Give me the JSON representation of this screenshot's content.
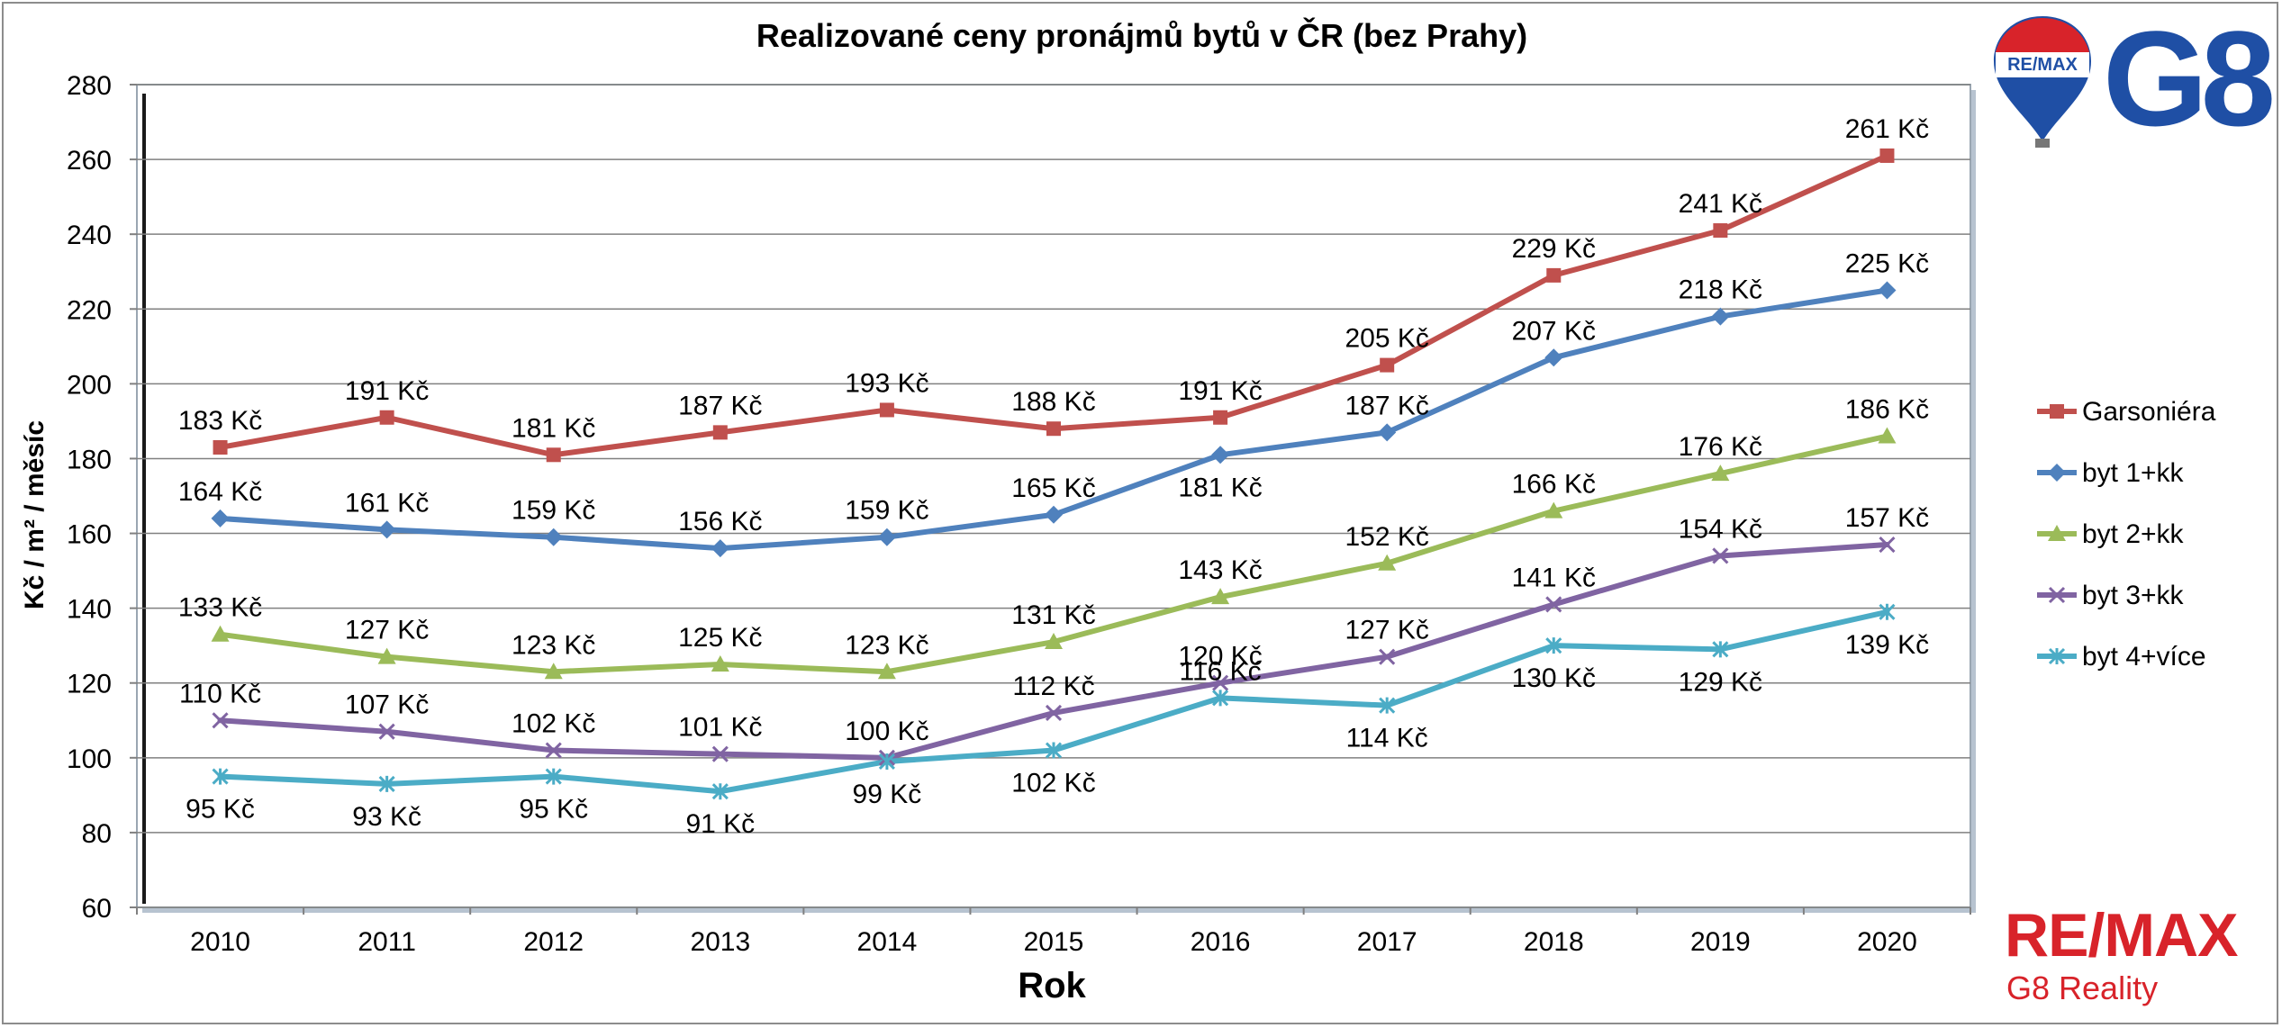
{
  "chart_data": {
    "type": "line",
    "title": "Realizované ceny pronájmů bytů v ČR (bez Prahy)",
    "xlabel": "Rok",
    "ylabel": "Kč / m² / měsíc",
    "categories": [
      "2010",
      "2011",
      "2012",
      "2013",
      "2014",
      "2015",
      "2016",
      "2017",
      "2018",
      "2019",
      "2020"
    ],
    "ylim": [
      60,
      280
    ],
    "yticks": [
      60,
      80,
      100,
      120,
      140,
      160,
      180,
      200,
      220,
      240,
      260,
      280
    ],
    "grid": true,
    "legend_position": "right",
    "value_suffix": " Kč",
    "series": [
      {
        "name": "Garsoniéra",
        "color": "#c0504d",
        "marker": "square",
        "values": [
          183,
          191,
          181,
          187,
          193,
          188,
          191,
          205,
          229,
          241,
          261
        ]
      },
      {
        "name": "byt 1+kk",
        "color": "#4f81bd",
        "marker": "diamond",
        "values": [
          164,
          161,
          159,
          156,
          159,
          165,
          181,
          187,
          207,
          218,
          225
        ]
      },
      {
        "name": "byt 2+kk",
        "color": "#9bbb59",
        "marker": "triangle",
        "values": [
          133,
          127,
          123,
          125,
          123,
          131,
          143,
          152,
          166,
          176,
          186
        ]
      },
      {
        "name": "byt 3+kk",
        "color": "#8064a2",
        "marker": "x",
        "values": [
          110,
          107,
          102,
          101,
          100,
          112,
          120,
          127,
          141,
          154,
          157
        ]
      },
      {
        "name": "byt 4+více",
        "color": "#4bacc6",
        "marker": "star",
        "values": [
          95,
          93,
          95,
          91,
          99,
          102,
          116,
          114,
          130,
          129,
          139
        ]
      }
    ]
  },
  "branding": {
    "balloon_text": "RE/MAX",
    "logo_text": "G8",
    "brand_name": "RE/MAX",
    "brand_sub": "G8 Reality"
  }
}
